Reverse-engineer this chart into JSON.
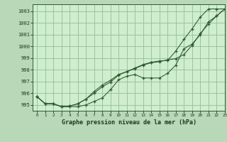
{
  "title": "Graphe pression niveau de la mer (hPa)",
  "background_color": "#b8d8b8",
  "plot_bg_color": "#ceeece",
  "grid_color": "#99bb99",
  "line_color": "#2d5a2d",
  "marker_color": "#2d5a2d",
  "xlim": [
    -0.5,
    23
  ],
  "ylim": [
    994.5,
    1003.6
  ],
  "yticks": [
    995,
    996,
    997,
    998,
    999,
    1000,
    1001,
    1002,
    1003
  ],
  "xticks": [
    0,
    1,
    2,
    3,
    4,
    5,
    6,
    7,
    8,
    9,
    10,
    11,
    12,
    13,
    14,
    15,
    16,
    17,
    18,
    19,
    20,
    21,
    22,
    23
  ],
  "series": [
    [
      995.7,
      995.1,
      995.1,
      994.85,
      994.85,
      994.85,
      995.0,
      995.3,
      995.6,
      996.3,
      997.15,
      997.45,
      997.6,
      997.3,
      997.3,
      997.3,
      997.7,
      998.4,
      999.8,
      1000.2,
      1001.0,
      1002.1,
      1002.6,
      1003.2
    ],
    [
      995.7,
      995.1,
      995.1,
      994.85,
      994.9,
      995.1,
      995.5,
      996.15,
      996.7,
      997.1,
      997.6,
      997.85,
      998.15,
      998.45,
      998.65,
      998.75,
      998.8,
      999.6,
      1000.6,
      1001.5,
      1002.5,
      1003.2,
      1003.2,
      1003.2
    ],
    [
      995.7,
      995.1,
      995.1,
      994.85,
      994.9,
      995.1,
      995.5,
      996.0,
      996.55,
      996.95,
      997.55,
      997.85,
      998.1,
      998.4,
      998.6,
      998.7,
      998.85,
      998.95,
      999.3,
      1000.1,
      1001.1,
      1001.9,
      1002.6,
      1003.2
    ]
  ]
}
